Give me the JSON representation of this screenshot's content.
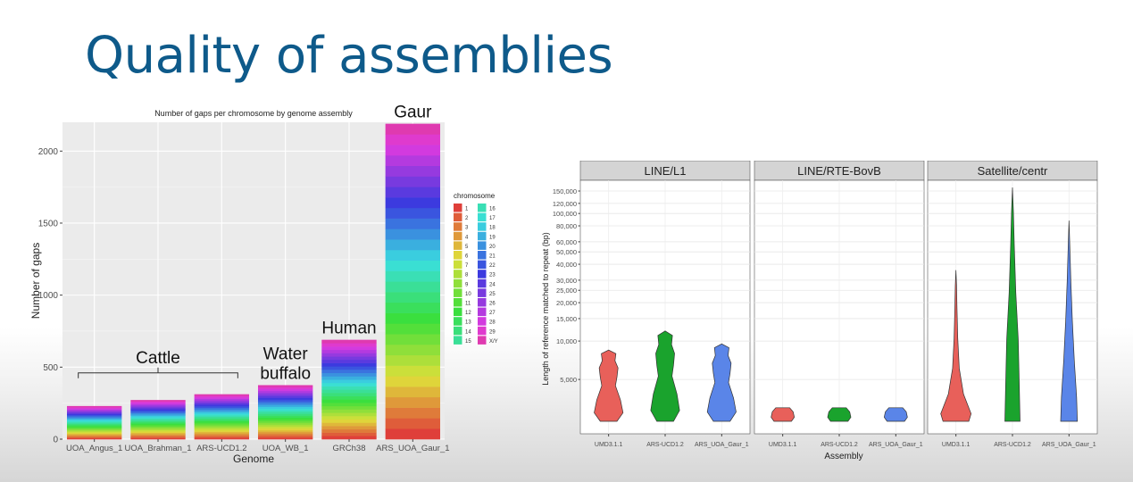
{
  "slide": {
    "title": "Quality of assemblies"
  },
  "colors": {
    "title": "#0e5a8a",
    "strip": "#d4d4d4",
    "panel": "#ebebeb"
  },
  "chart_data": [
    {
      "type": "bar",
      "stacked": true,
      "title": "Number of gaps per chromosome by genome assembly",
      "xlabel": "Genome",
      "ylabel": "Number of gaps",
      "ylim": [
        0,
        2200
      ],
      "yticks": [
        0,
        500,
        1000,
        1500,
        2000
      ],
      "grid": true,
      "legend_position": "right",
      "legend_title": "chromosome",
      "legend_entries": [
        "1",
        "2",
        "3",
        "4",
        "5",
        "6",
        "7",
        "8",
        "9",
        "10",
        "11",
        "12",
        "13",
        "14",
        "15",
        "16",
        "17",
        "18",
        "19",
        "20",
        "21",
        "22",
        "23",
        "24",
        "25",
        "26",
        "27",
        "28",
        "29",
        "X/Y"
      ],
      "categories": [
        "UOA_Angus_1",
        "UOA_Brahman_1",
        "ARS-UCD1.2",
        "UOA_WB_1",
        "GRCh38",
        "ARS_UOA_Gaur_1"
      ],
      "totals": [
        230,
        272,
        312,
        375,
        690,
        2190
      ],
      "annotations": [
        {
          "text": "Cattle",
          "spans": [
            "UOA_Angus_1",
            "ARS-UCD1.2"
          ]
        },
        {
          "text": "Water\nbuffalo",
          "category": "UOA_WB_1"
        },
        {
          "text": "Human",
          "category": "GRCh38"
        },
        {
          "text": "Gaur",
          "category": "ARS_UOA_Gaur_1"
        }
      ]
    },
    {
      "type": "violin",
      "xlabel": "Assembly",
      "ylabel": "Length of reference matched to repeat (bp)",
      "yscale": "log",
      "ylim": [
        2000,
        160000
      ],
      "yticks": [
        5000,
        10000,
        15000,
        20000,
        25000,
        30000,
        40000,
        50000,
        60000,
        80000,
        100000,
        120000,
        150000
      ],
      "ytick_labels": [
        "5,000",
        "10,000",
        "15,000",
        "20,000",
        "25,000",
        "30,000",
        "40,000",
        "50,000",
        "60,000",
        "80,000",
        "100,000",
        "120,000",
        "150,000"
      ],
      "grid": true,
      "panels": [
        {
          "name": "LINE/L1",
          "categories": [
            "UMD3.1.1",
            "ARS-UCD1.2",
            "ARS_UOA_Gaur_1"
          ],
          "max_values": [
            8500,
            12000,
            9500
          ],
          "colors": [
            "#e8605a",
            "#1aa32d",
            "#5a85e8"
          ]
        },
        {
          "name": "LINE/RTE-BovB",
          "categories": [
            "UMD3.1.1",
            "ARS-UCD1.2",
            "ARS_UOA_Gaur_1"
          ],
          "max_values": [
            3000,
            3000,
            3000
          ],
          "colors": [
            "#e8605a",
            "#1aa32d",
            "#5a85e8"
          ]
        },
        {
          "name": "Satellite/centr",
          "categories": [
            "UMD3.1.1",
            "ARS-UCD1.2",
            "ARS_UOA_Gaur_1"
          ],
          "max_values": [
            36000,
            160000,
            88000
          ],
          "colors": [
            "#e8605a",
            "#1aa32d",
            "#5a85e8"
          ]
        }
      ]
    }
  ]
}
